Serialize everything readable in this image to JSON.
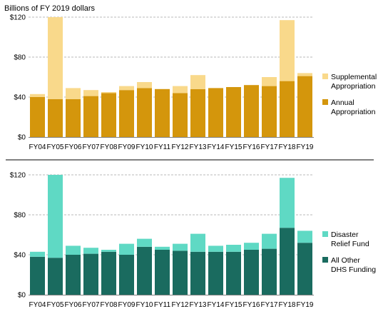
{
  "figure": {
    "ylabel_top": "Billions of FY 2019 dollars"
  },
  "chart_data": [
    {
      "type": "bar",
      "stacked": true,
      "ylabel": "Billions of FY 2019 dollars",
      "ylim": [
        0,
        120
      ],
      "yticks": [
        "$0",
        "$40",
        "$80",
        "$120"
      ],
      "grid": true,
      "legend_placement": "right",
      "categories": [
        "FY04",
        "FY05",
        "FY06",
        "FY07",
        "FY08",
        "FY09",
        "FY10",
        "FY11",
        "FY12",
        "FY13",
        "FY14",
        "FY15",
        "FY16",
        "FY17",
        "FY18",
        "FY19"
      ],
      "series": [
        {
          "name": "Annual Appropriation",
          "color": "#d4960c",
          "values": [
            40,
            38,
            38,
            41,
            44,
            47,
            49,
            48,
            44,
            48,
            49,
            50,
            52,
            51,
            56,
            61
          ]
        },
        {
          "name": "Supplemental Appropriation",
          "color": "#f9d98b",
          "values": [
            3,
            82,
            11,
            6,
            1,
            4,
            6,
            0,
            7,
            14,
            0,
            0,
            0,
            9,
            61,
            3
          ]
        }
      ],
      "legend": [
        {
          "line1": "Supplemental",
          "line2": "Appropriation",
          "color": "#f9d98b"
        },
        {
          "line1": "Annual",
          "line2": "Appropriation",
          "color": "#d4960c"
        }
      ]
    },
    {
      "type": "bar",
      "stacked": true,
      "ylim": [
        0,
        120
      ],
      "yticks": [
        "$0",
        "$40",
        "$80",
        "$120"
      ],
      "grid": true,
      "legend_placement": "right",
      "categories": [
        "FY04",
        "FY05",
        "FY06",
        "FY07",
        "FY08",
        "FY09",
        "FY10",
        "FY11",
        "FY12",
        "FY13",
        "FY14",
        "FY15",
        "FY16",
        "FY17",
        "FY18",
        "FY19"
      ],
      "series": [
        {
          "name": "All Other DHS Funding",
          "color": "#1a6b5f",
          "values": [
            38,
            37,
            40,
            41,
            43,
            40,
            48,
            45,
            44,
            43,
            43,
            43,
            45,
            46,
            67,
            52
          ]
        },
        {
          "name": "Disaster Relief Fund",
          "color": "#5fd9c4",
          "values": [
            5,
            83,
            9,
            6,
            2,
            11,
            8,
            3,
            7,
            18,
            6,
            7,
            7,
            15,
            50,
            12
          ]
        }
      ],
      "legend": [
        {
          "line1": "Disaster",
          "line2": "Relief Fund",
          "color": "#5fd9c4"
        },
        {
          "line1": "All Other",
          "line2": "DHS Funding",
          "color": "#1a6b5f"
        }
      ]
    }
  ]
}
